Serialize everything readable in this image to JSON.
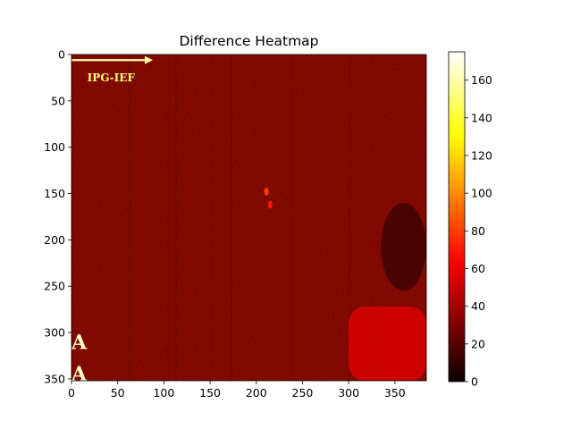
{
  "chart_data": {
    "type": "heatmap",
    "title": "Difference Heatmap",
    "xlabel": "",
    "ylabel": "",
    "image_width": 384,
    "image_height": 352,
    "xlim": [
      0,
      384
    ],
    "ylim": [
      352,
      0
    ],
    "x_ticks": [
      0,
      50,
      100,
      150,
      200,
      250,
      300,
      350
    ],
    "y_ticks": [
      0,
      50,
      100,
      150,
      200,
      250,
      300,
      350
    ],
    "colormap": "hot",
    "colorbar": {
      "range": [
        0,
        175
      ],
      "ticks": [
        0,
        20,
        40,
        60,
        80,
        100,
        120,
        140,
        160
      ]
    },
    "background_value": 25,
    "features": [
      {
        "label": "arrow",
        "x0": 0,
        "x1": 88,
        "y": 6,
        "value": 160
      },
      {
        "label": "text",
        "text": "IPG-IEF",
        "x": 17,
        "y": 25,
        "value": 150
      },
      {
        "label": "text",
        "text": "A",
        "x": 0,
        "y": 318,
        "value": 165
      },
      {
        "label": "text",
        "text": "A",
        "x": 0,
        "y": 352,
        "value": 165
      },
      {
        "label": "bright-region",
        "x0": 300,
        "x1": 384,
        "y0": 272,
        "y1": 352,
        "value": 55
      },
      {
        "label": "dark-region",
        "x0": 335,
        "x1": 384,
        "y0": 160,
        "y1": 255,
        "value": 10
      },
      {
        "label": "spot",
        "x": 211,
        "y": 148,
        "value": 80
      },
      {
        "label": "spot",
        "x": 215,
        "y": 162,
        "value": 70
      }
    ],
    "grid": false,
    "legend": "none"
  }
}
